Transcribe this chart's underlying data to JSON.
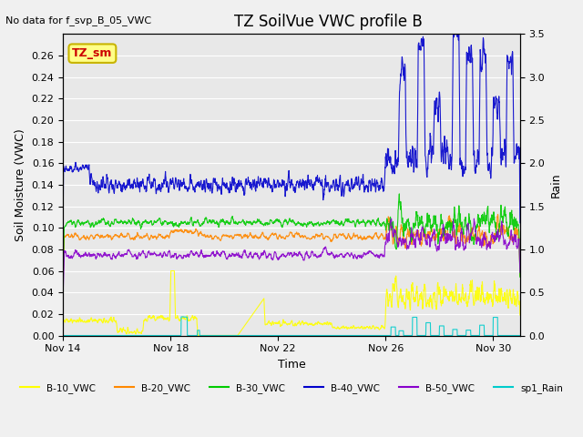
{
  "title": "TZ SoilVue VWC profile B",
  "no_data_text": "No data for f_svp_B_05_VWC",
  "ylabel_left": "Soil Moisture (VWC)",
  "ylabel_right": "Rain",
  "xlabel": "Time",
  "ylim_left": [
    0,
    0.28
  ],
  "ylim_right": [
    0.0,
    3.5
  ],
  "yticks_left": [
    0.0,
    0.02,
    0.04,
    0.06,
    0.08,
    0.1,
    0.12,
    0.14,
    0.16,
    0.18,
    0.2,
    0.22,
    0.24,
    0.26
  ],
  "yticks_right": [
    0.0,
    0.5,
    1.0,
    1.5,
    2.0,
    2.5,
    3.0,
    3.5
  ],
  "background_color": "#f0f0f0",
  "plot_bg_color": "#e8e8e8",
  "grid_color": "white",
  "tz_sm_box_color": "#c8b400",
  "tz_sm_text_color": "#cc0000",
  "series_colors": {
    "B10": "#ffff00",
    "B20": "#ff8800",
    "B30": "#00cc00",
    "B40": "#0000cc",
    "B50": "#8800cc",
    "rain": "#00cccc"
  },
  "legend_labels": [
    "B-10_VWC",
    "B-20_VWC",
    "B-30_VWC",
    "B-40_VWC",
    "B-50_VWC",
    "sp1_Rain"
  ],
  "legend_colors": [
    "#ffff00",
    "#ff8800",
    "#00cc00",
    "#0000cc",
    "#8800cc",
    "#00cccc"
  ],
  "xticklabels": [
    "Nov 14",
    "Nov 18",
    "Nov 22",
    "Nov 26",
    "Nov 30"
  ],
  "xtick_positions": [
    0,
    4,
    8,
    12,
    16
  ]
}
